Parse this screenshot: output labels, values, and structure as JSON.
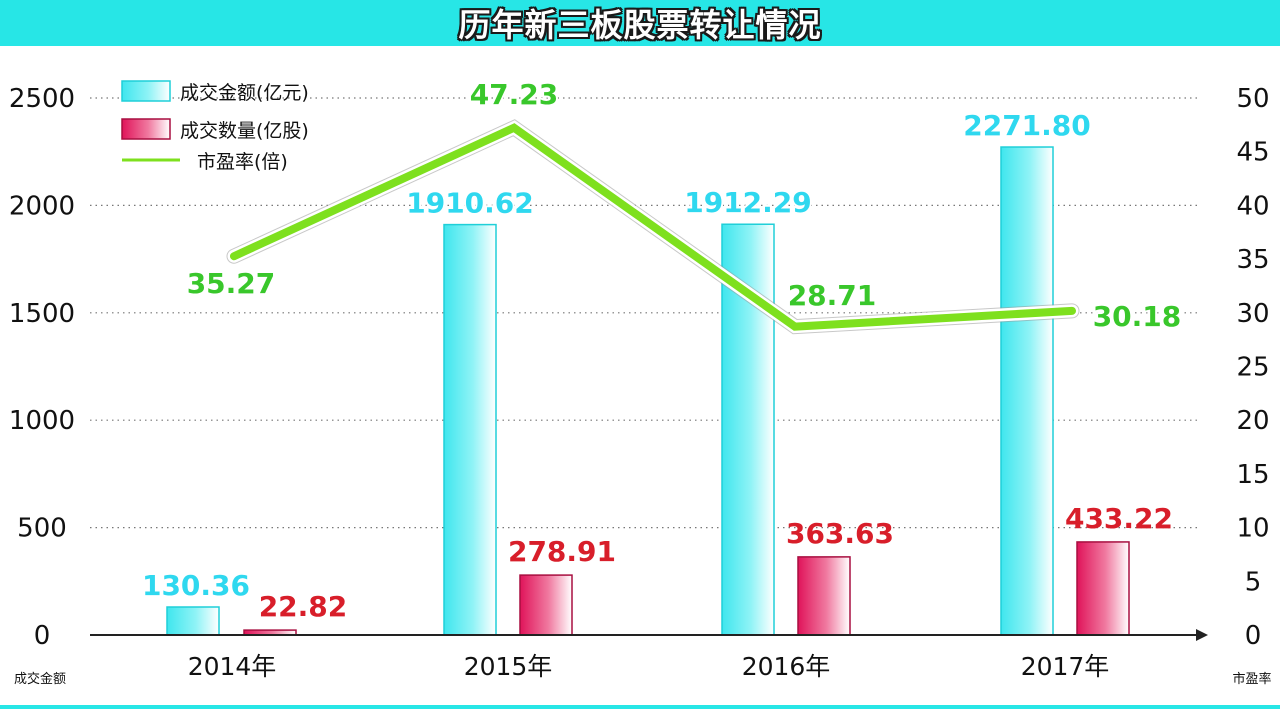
{
  "title": "历年新三板股票转让情况",
  "colors": {
    "title_bg": "#27e6e6",
    "amount": "#3fe6ee",
    "amount_label": "#2fd8ef",
    "volume": "#e0145a",
    "volume_label": "#d81e2a",
    "pe_line": "#7ee01e",
    "pe_label": "#39c72b",
    "axis": "#222222"
  },
  "chart_data": {
    "type": "bar",
    "categories": [
      "2014年",
      "2015年",
      "2016年",
      "2017年"
    ],
    "series": [
      {
        "name": "成交金额(亿元)",
        "axis": "left",
        "kind": "bar",
        "values": [
          130.36,
          1910.62,
          1912.29,
          2271.8
        ],
        "labels": [
          "130.36",
          "1910.62",
          "1912.29",
          "2271.80"
        ]
      },
      {
        "name": "成交数量(亿股)",
        "axis": "left",
        "kind": "bar",
        "values": [
          22.82,
          278.91,
          363.63,
          433.22
        ],
        "labels": [
          "22.82",
          "278.91",
          "363.63",
          "433.22"
        ]
      },
      {
        "name": "市盈率(倍)",
        "axis": "right",
        "kind": "line",
        "values": [
          35.27,
          47.23,
          28.71,
          30.18
        ],
        "labels": [
          "35.27",
          "47.23",
          "28.71",
          "30.18"
        ]
      }
    ],
    "ylim_left": [
      0,
      2500
    ],
    "yticks_left": [
      "0",
      "500",
      "1000",
      "1500",
      "2000",
      "2500"
    ],
    "ylabel_left": "成交金额",
    "ylim_right": [
      0,
      50
    ],
    "yticks_right": [
      "0",
      "5",
      "10",
      "15",
      "20",
      "25",
      "30",
      "35",
      "40",
      "45",
      "50"
    ],
    "ylabel_right": "市盈率",
    "grid": "dotted horizontal",
    "legend_position": "top-left"
  }
}
